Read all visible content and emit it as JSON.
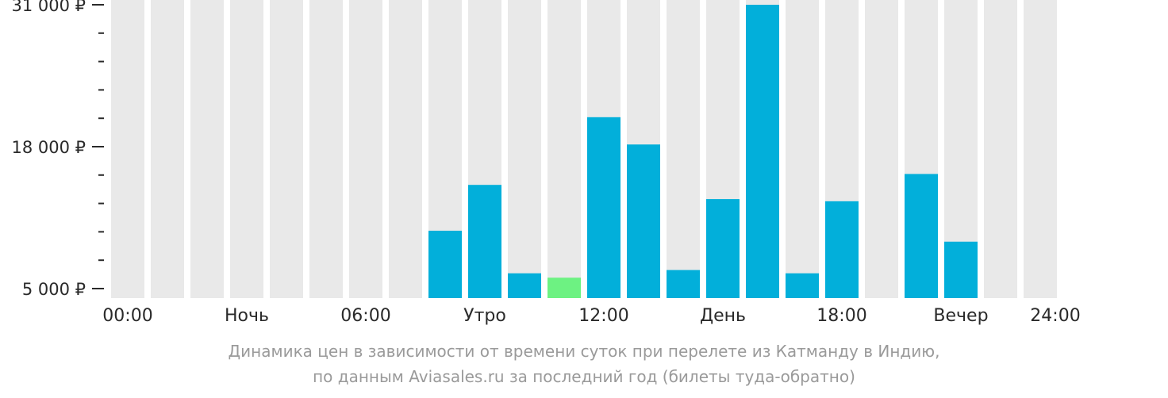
{
  "chart_data": {
    "type": "bar",
    "categories": [
      "00:00",
      "01:00",
      "02:00",
      "03:00",
      "04:00",
      "05:00",
      "06:00",
      "07:00",
      "08:00",
      "09:00",
      "10:00",
      "11:00",
      "12:00",
      "13:00",
      "14:00",
      "15:00",
      "16:00",
      "17:00",
      "18:00",
      "19:00",
      "20:00",
      "21:00",
      "22:00",
      "23:00"
    ],
    "values": [
      null,
      null,
      null,
      null,
      null,
      null,
      null,
      null,
      10300,
      14500,
      6400,
      6000,
      20700,
      18200,
      6700,
      13200,
      31000,
      6400,
      13000,
      null,
      15500,
      9300,
      null,
      null
    ],
    "cheapest_index": 11,
    "ylim": [
      5000,
      31000
    ],
    "y_tick_labels": [
      {
        "value": 31000,
        "label": "31 000 ₽"
      },
      {
        "value": 18000,
        "label": "18 000 ₽"
      },
      {
        "value": 5000,
        "label": "5 000 ₽"
      }
    ],
    "y_minor_ticks": [
      28400,
      25800,
      23200,
      20600,
      15400,
      12800,
      10200,
      7600
    ],
    "x_tick_labels": [
      {
        "hour": 0,
        "label": "00:00"
      },
      {
        "hour": 3,
        "label": "Ночь"
      },
      {
        "hour": 6,
        "label": "06:00"
      },
      {
        "hour": 9,
        "label": "Утро"
      },
      {
        "hour": 12,
        "label": "12:00"
      },
      {
        "hour": 15,
        "label": "День"
      },
      {
        "hour": 18,
        "label": "18:00"
      },
      {
        "hour": 21,
        "label": "Вечер"
      },
      {
        "hour": 24,
        "label": "24:00"
      }
    ],
    "colors": {
      "background_bar": "#e9e9e9",
      "bar": "#02afda",
      "cheapest_bar": "#6df282",
      "axis": "#2a2a2a"
    }
  },
  "caption": {
    "line1": "Динамика цен в зависимости от времени суток при перелете из Катманду в Индию,",
    "line2": "по данным Aviasales.ru за последний год (билеты туда-обратно)"
  }
}
